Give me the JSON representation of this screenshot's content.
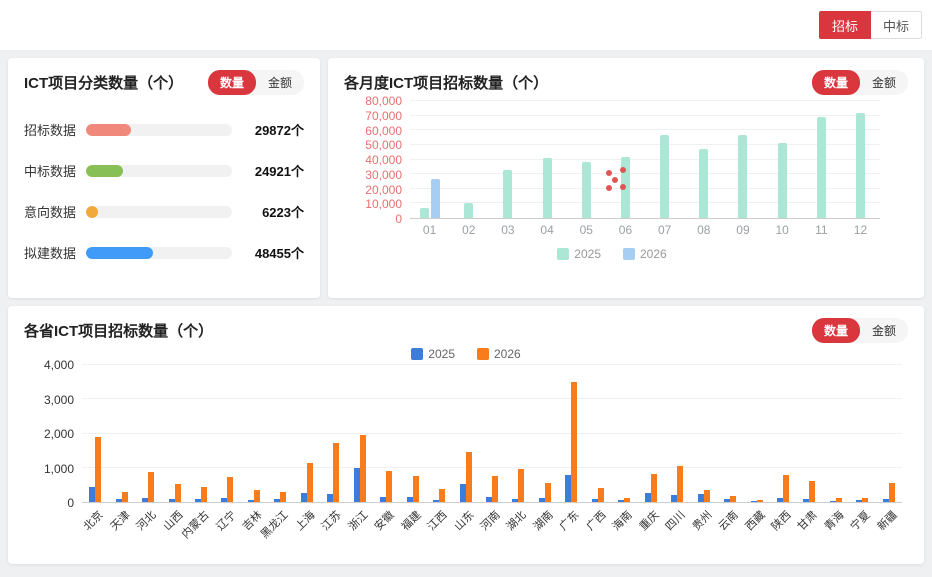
{
  "top_tabs": [
    {
      "label": "招标",
      "active": true
    },
    {
      "label": "中标",
      "active": false
    }
  ],
  "colors": {
    "accent_red": "#d9363e",
    "mint_2025": "#abe7d4",
    "lightblue_2026": "#a6cdf2",
    "province_blue_2025": "#3b7ddd",
    "province_orange_2026": "#f87c1b",
    "scatter_red": "#e25555"
  },
  "category": {
    "title": "ICT项目分类数量（个）",
    "toggle": {
      "count": "数量",
      "amount": "金额"
    },
    "rows": [
      {
        "label": "招标数据",
        "value": "29872个",
        "color": "#f0897c",
        "bar_pct": 31
      },
      {
        "label": "中标数据",
        "value": "24921个",
        "color": "#88c057",
        "bar_pct": 25
      },
      {
        "label": "意向数据",
        "value": "6223个",
        "color": "#f2a93b",
        "bar_pct": 8
      },
      {
        "label": "拟建数据",
        "value": "48455个",
        "color": "#3f9bf7",
        "bar_pct": 46
      }
    ]
  },
  "monthly": {
    "title": "各月度ICT项目招标数量（个）",
    "toggle": {
      "count": "数量",
      "amount": "金额"
    }
  },
  "province": {
    "title": "各省ICT项目招标数量（个）",
    "toggle": {
      "count": "数量",
      "amount": "金额"
    }
  },
  "chart_data": [
    {
      "id": "monthly",
      "type": "bar",
      "title": "各月度ICT项目招标数量（个）",
      "categories": [
        "01",
        "02",
        "03",
        "04",
        "05",
        "06",
        "07",
        "08",
        "09",
        "10",
        "11",
        "12"
      ],
      "series": [
        {
          "name": "2025",
          "color": "#abe7d4",
          "values": [
            7000,
            10000,
            33000,
            41000,
            38000,
            42000,
            57000,
            47000,
            57000,
            51000,
            69000,
            72000
          ]
        },
        {
          "name": "2026",
          "color": "#a6cdf2",
          "values": [
            27000,
            null,
            null,
            null,
            null,
            null,
            null,
            null,
            null,
            null,
            null,
            null
          ]
        }
      ],
      "scatter": [
        {
          "x": 5.58,
          "y": 31000
        },
        {
          "x": 5.93,
          "y": 33000
        },
        {
          "x": 5.74,
          "y": 26000
        },
        {
          "x": 5.58,
          "y": 20500
        },
        {
          "x": 5.95,
          "y": 21000
        }
      ],
      "scatter_color": "#e25555",
      "ylim": [
        0,
        80000
      ],
      "ytick_step": 10000,
      "grid": true,
      "legend_position": "bottom"
    },
    {
      "id": "province",
      "type": "bar",
      "title": "各省ICT项目招标数量（个）",
      "categories": [
        "北京",
        "天津",
        "河北",
        "山西",
        "内蒙古",
        "辽宁",
        "吉林",
        "黑龙江",
        "上海",
        "江苏",
        "浙江",
        "安徽",
        "福建",
        "江西",
        "山东",
        "河南",
        "湖北",
        "湖南",
        "广东",
        "广西",
        "海南",
        "重庆",
        "四川",
        "贵州",
        "云南",
        "西藏",
        "陕西",
        "甘肃",
        "青海",
        "宁夏",
        "新疆"
      ],
      "series": [
        {
          "name": "2025",
          "color": "#3b7ddd",
          "values": [
            450,
            80,
            120,
            80,
            100,
            130,
            60,
            100,
            250,
            230,
            1000,
            150,
            160,
            70,
            520,
            150,
            100,
            120,
            800,
            80,
            60,
            250,
            200,
            230,
            100,
            30,
            120,
            90,
            40,
            60,
            100
          ]
        },
        {
          "name": "2026",
          "color": "#f87c1b",
          "values": [
            1900,
            280,
            870,
            520,
            450,
            720,
            350,
            300,
            1150,
            1730,
            1950,
            900,
            750,
            380,
            1450,
            750,
            950,
            550,
            3500,
            420,
            130,
            820,
            1050,
            350,
            180,
            60,
            800,
            600,
            130,
            130,
            560
          ]
        }
      ],
      "ylim": [
        0,
        4000
      ],
      "ytick_step": 1000,
      "grid": true,
      "legend_position": "top"
    }
  ]
}
